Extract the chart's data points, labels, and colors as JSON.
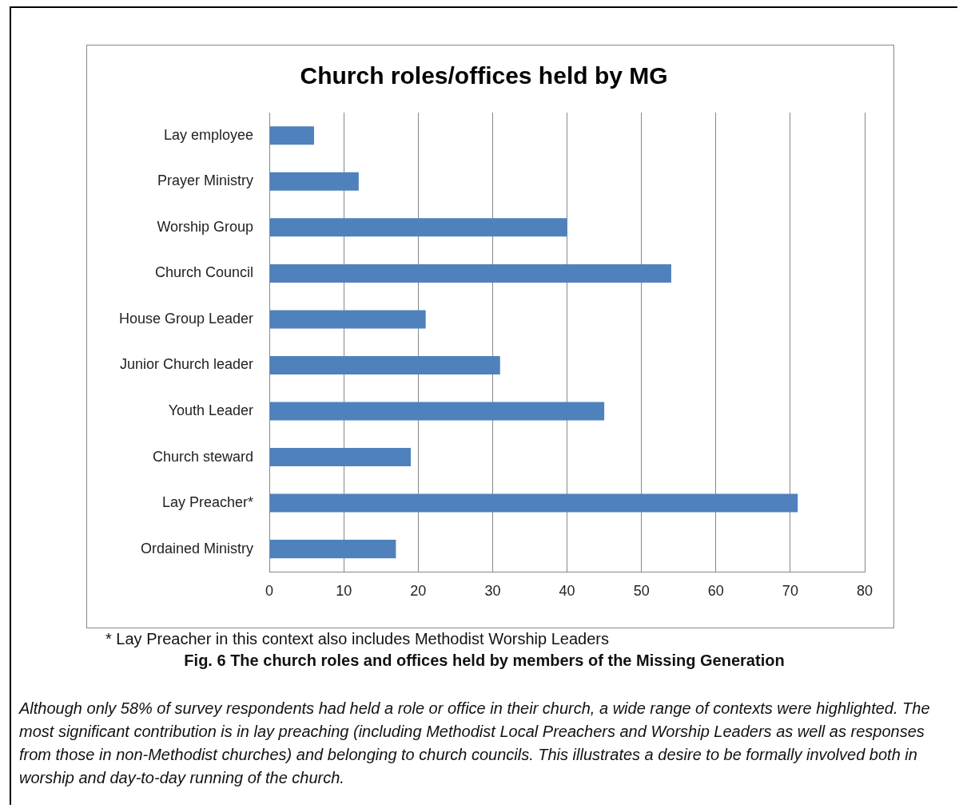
{
  "chart_data": {
    "type": "bar",
    "orientation": "horizontal",
    "title": "Church roles/offices held by MG",
    "categories": [
      "Lay employee",
      "Prayer Ministry",
      "Worship Group",
      "Church Council",
      "House Group Leader",
      "Junior Church leader",
      "Youth Leader",
      "Church steward",
      "Lay Preacher*",
      "Ordained Ministry"
    ],
    "values": [
      6,
      12,
      40,
      54,
      21,
      31,
      45,
      19,
      71,
      17
    ],
    "color": "#4f81bd",
    "xlim": [
      0,
      80
    ],
    "xticks": [
      0,
      10,
      20,
      30,
      40,
      50,
      60,
      70,
      80
    ],
    "grid": "x",
    "legend": false,
    "annotations": [
      "* Lay Preacher in this context also includes Methodist Worship Leaders",
      "Fig. 6 The church roles and offices held by members of the Missing Generation",
      "Although only 58% of survey respondents had held a role or office in their church, a wide range of contexts were highlighted. The most significant contribution is in lay preaching (including Methodist Local Preachers and Worship Leaders as well as responses from those in non-Methodist churches) and belonging to church councils. This illustrates a desire to be formally involved both in worship and day-to-day running of the church."
    ]
  }
}
